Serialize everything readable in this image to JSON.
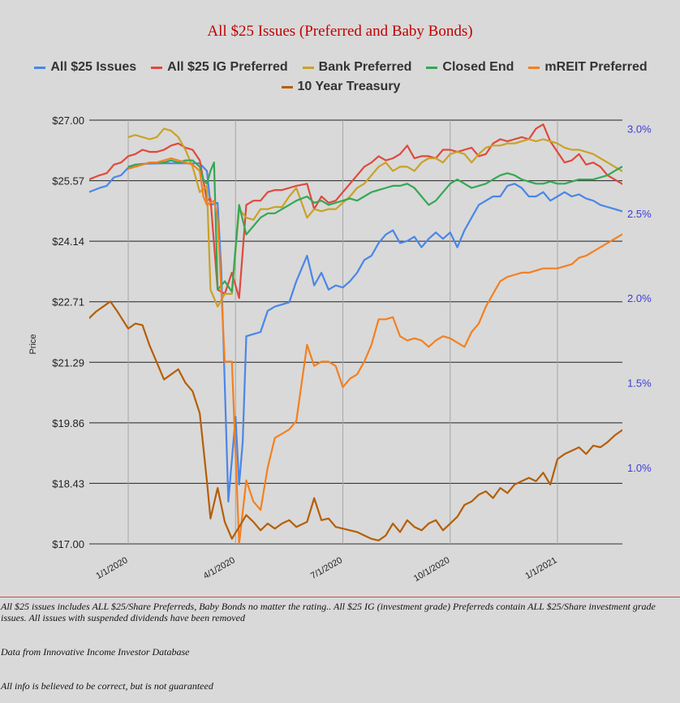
{
  "chart_data": {
    "type": "line",
    "title": "All $25 Issues (Preferred and Baby Bonds)",
    "ylabel": "Price",
    "y_left_ticks": [
      "$27.00",
      "$25.57",
      "$24.14",
      "$22.71",
      "$21.29",
      "$19.86",
      "$18.43",
      "$17.00"
    ],
    "ylim": [
      17.0,
      27.0
    ],
    "y_right_ticks": [
      "3.0%",
      "2.5%",
      "2.0%",
      "1.5%",
      "1.0%"
    ],
    "y2lim": [
      0.55,
      3.05
    ],
    "x_ticks": [
      {
        "label": "1/1/2020",
        "t": 0
      },
      {
        "label": "4/1/2020",
        "t": 3
      },
      {
        "label": "7/1/2020",
        "t": 6
      },
      {
        "label": "10/1/2020",
        "t": 9
      },
      {
        "label": "1/1/2021",
        "t": 12
      }
    ],
    "xlim": [
      -1.1,
      14.7
    ],
    "series": [
      {
        "name": "All $25 Issues",
        "color": "#4a86e8",
        "axis": "left",
        "x": [
          -1.1,
          -0.8,
          -0.6,
          -0.4,
          -0.2,
          0,
          0.2,
          0.4,
          1.0,
          1.5,
          2.0,
          2.2,
          2.3,
          2.5,
          2.6,
          2.8,
          3.0,
          3.1,
          3.2,
          3.3,
          3.5,
          3.7,
          3.9,
          4.1,
          4.3,
          4.5,
          4.7,
          5.0,
          5.2,
          5.4,
          5.6,
          5.8,
          6.0,
          6.2,
          6.4,
          6.6,
          6.8,
          7.0,
          7.2,
          7.4,
          7.6,
          7.8,
          8.0,
          8.2,
          8.4,
          8.6,
          8.8,
          9.0,
          9.2,
          9.4,
          9.6,
          9.8,
          10.0,
          10.2,
          10.4,
          10.6,
          10.8,
          11.0,
          11.2,
          11.4,
          11.6,
          11.8,
          12.0,
          12.2,
          12.4,
          12.6,
          12.8,
          13.0,
          13.2,
          13.4,
          13.6,
          13.8,
          14.0,
          14.2,
          14.4,
          14.6
        ],
        "y": [
          25.3,
          25.4,
          25.45,
          25.65,
          25.7,
          25.88,
          25.95,
          25.97,
          25.98,
          25.98,
          25.98,
          25.8,
          25.0,
          25.05,
          23.5,
          18.0,
          20.0,
          18.4,
          19.4,
          21.9,
          21.95,
          22.0,
          22.5,
          22.6,
          22.65,
          22.7,
          23.2,
          23.8,
          23.1,
          23.4,
          23.0,
          23.1,
          23.05,
          23.2,
          23.4,
          23.7,
          23.8,
          24.1,
          24.3,
          24.4,
          24.1,
          24.15,
          24.25,
          24.0,
          24.2,
          24.35,
          24.2,
          24.35,
          24.0,
          24.4,
          24.7,
          25.0,
          25.1,
          25.2,
          25.2,
          25.45,
          25.5,
          25.4,
          25.2,
          25.2,
          25.3,
          25.1,
          25.2,
          25.3,
          25.2,
          25.25,
          25.15,
          25.1,
          25.0,
          24.95,
          24.9,
          24.85,
          24.8,
          24.75,
          24.7,
          24.6
        ]
      },
      {
        "name": "All $25 IG Preferred",
        "color": "#e0493d",
        "axis": "left",
        "x": [
          -1.1,
          -0.8,
          -0.6,
          -0.4,
          -0.2,
          0,
          0.2,
          0.4,
          0.6,
          0.8,
          1.0,
          1.2,
          1.4,
          1.6,
          1.8,
          2.0,
          2.2,
          2.3,
          2.5,
          2.7,
          2.9,
          3.1,
          3.3,
          3.5,
          3.7,
          3.9,
          4.1,
          4.3,
          4.5,
          4.7,
          5.0,
          5.2,
          5.4,
          5.6,
          5.8,
          6.0,
          6.2,
          6.4,
          6.6,
          6.8,
          7.0,
          7.2,
          7.4,
          7.6,
          7.8,
          8.0,
          8.2,
          8.4,
          8.6,
          8.8,
          9.0,
          9.2,
          9.4,
          9.6,
          9.8,
          10.0,
          10.2,
          10.4,
          10.6,
          10.8,
          11.0,
          11.2,
          11.4,
          11.6,
          11.8,
          12.0,
          12.2,
          12.4,
          12.6,
          12.8,
          13.0,
          13.2,
          13.4,
          13.6,
          13.8,
          14.0,
          14.2,
          14.4,
          14.6
        ],
        "y": [
          25.6,
          25.7,
          25.75,
          25.95,
          26.0,
          26.15,
          26.2,
          26.3,
          26.25,
          26.25,
          26.3,
          26.4,
          26.45,
          26.35,
          26.3,
          26.05,
          25.1,
          25.15,
          23.0,
          22.9,
          23.4,
          22.8,
          25.0,
          25.1,
          25.1,
          25.3,
          25.35,
          25.35,
          25.4,
          25.45,
          25.5,
          24.9,
          25.2,
          25.05,
          25.1,
          25.3,
          25.5,
          25.7,
          25.9,
          26.0,
          26.15,
          26.05,
          26.1,
          26.2,
          26.4,
          26.1,
          26.15,
          26.15,
          26.1,
          26.3,
          26.3,
          26.25,
          26.3,
          26.35,
          26.15,
          26.2,
          26.45,
          26.55,
          26.5,
          26.55,
          26.6,
          26.55,
          26.8,
          26.9,
          26.5,
          26.25,
          26.0,
          26.05,
          26.2,
          25.95,
          26.0,
          25.9,
          25.7,
          25.6,
          25.5,
          25.4,
          25.3,
          25.2,
          25.1
        ]
      },
      {
        "name": "Bank Preferred",
        "color": "#c9a227",
        "axis": "left",
        "x": [
          0,
          0.2,
          0.4,
          0.6,
          0.8,
          1.0,
          1.2,
          1.4,
          1.6,
          1.8,
          2.0,
          2.2,
          2.3,
          2.5,
          2.7,
          2.9,
          3.1,
          3.3,
          3.5,
          3.7,
          3.9,
          4.1,
          4.3,
          4.5,
          4.7,
          5.0,
          5.2,
          5.4,
          5.6,
          5.8,
          6.0,
          6.2,
          6.4,
          6.6,
          6.8,
          7.0,
          7.2,
          7.4,
          7.6,
          7.8,
          8.0,
          8.2,
          8.4,
          8.6,
          8.8,
          9.0,
          9.2,
          9.4,
          9.6,
          9.8,
          10.0,
          10.2,
          10.4,
          10.6,
          10.8,
          11.0,
          11.2,
          11.4,
          11.6,
          11.8,
          12.0,
          12.2,
          12.4,
          12.6,
          12.8,
          13.0,
          13.2,
          13.4,
          13.6,
          13.8,
          14.0,
          14.2,
          14.4,
          14.6
        ],
        "y": [
          26.6,
          26.65,
          26.6,
          26.55,
          26.6,
          26.8,
          26.75,
          26.6,
          26.3,
          25.9,
          25.3,
          25.45,
          23.0,
          22.6,
          22.9,
          22.9,
          24.9,
          24.7,
          24.65,
          24.9,
          24.9,
          24.95,
          24.95,
          25.2,
          25.4,
          24.7,
          24.9,
          24.85,
          24.9,
          24.9,
          25.05,
          25.2,
          25.4,
          25.5,
          25.7,
          25.9,
          26.0,
          25.8,
          25.9,
          25.9,
          25.8,
          26.0,
          26.1,
          26.1,
          26.0,
          26.2,
          26.25,
          26.2,
          26.0,
          26.2,
          26.35,
          26.4,
          26.4,
          26.45,
          26.45,
          26.5,
          26.55,
          26.5,
          26.55,
          26.5,
          26.45,
          26.35,
          26.3,
          26.3,
          26.25,
          26.2,
          26.1,
          26.0,
          25.9,
          25.8,
          25.7,
          25.6,
          25.5,
          25.4
        ]
      },
      {
        "name": "Closed End",
        "color": "#34a853",
        "axis": "left",
        "x": [
          0,
          0.2,
          0.4,
          0.6,
          0.8,
          1.0,
          1.2,
          1.4,
          1.6,
          1.8,
          2.0,
          2.1,
          2.2,
          2.3,
          2.4,
          2.5,
          2.7,
          2.9,
          3.1,
          3.3,
          3.5,
          3.7,
          3.9,
          4.1,
          4.3,
          4.5,
          4.7,
          5.0,
          5.2,
          5.4,
          5.6,
          5.8,
          6.0,
          6.2,
          6.4,
          6.6,
          6.8,
          7.0,
          7.2,
          7.4,
          7.6,
          7.8,
          8.0,
          8.2,
          8.4,
          8.6,
          8.8,
          9.0,
          9.2,
          9.4,
          9.6,
          9.8,
          10.0,
          10.2,
          10.4,
          10.6,
          10.8,
          11.0,
          11.2,
          11.4,
          11.6,
          11.8,
          12.0,
          12.2,
          12.4,
          12.6,
          12.8,
          13.0,
          13.2,
          13.4,
          13.6,
          13.8,
          14.0,
          14.2,
          14.4,
          14.6
        ],
        "y": [
          25.9,
          25.95,
          25.95,
          26.0,
          26.0,
          26.0,
          26.05,
          26.0,
          26.05,
          26.05,
          25.9,
          25.6,
          25.5,
          25.8,
          26.0,
          23.0,
          23.2,
          22.95,
          25.0,
          24.3,
          24.5,
          24.7,
          24.8,
          24.8,
          24.9,
          25.0,
          25.1,
          25.2,
          25.05,
          25.1,
          25.0,
          25.05,
          25.1,
          25.15,
          25.1,
          25.2,
          25.3,
          25.35,
          25.4,
          25.45,
          25.45,
          25.5,
          25.4,
          25.2,
          25.0,
          25.1,
          25.3,
          25.5,
          25.6,
          25.5,
          25.4,
          25.45,
          25.5,
          25.6,
          25.7,
          25.75,
          25.7,
          25.6,
          25.55,
          25.5,
          25.5,
          25.55,
          25.5,
          25.5,
          25.55,
          25.6,
          25.6,
          25.6,
          25.65,
          25.7,
          25.8,
          25.9,
          25.8,
          25.7,
          25.6,
          25.5
        ]
      },
      {
        "name": "mREIT Preferred",
        "color": "#f4801f",
        "axis": "left",
        "x": [
          0,
          0.2,
          0.4,
          0.6,
          0.8,
          1.0,
          1.2,
          1.4,
          1.6,
          1.8,
          2.0,
          2.1,
          2.2,
          2.4,
          2.5,
          2.7,
          2.9,
          3.1,
          3.3,
          3.5,
          3.7,
          3.9,
          4.1,
          4.3,
          4.5,
          4.7,
          5.0,
          5.2,
          5.4,
          5.6,
          5.8,
          6.0,
          6.2,
          6.4,
          6.6,
          6.8,
          7.0,
          7.2,
          7.4,
          7.6,
          7.8,
          8.0,
          8.2,
          8.4,
          8.6,
          8.8,
          9.0,
          9.2,
          9.4,
          9.6,
          9.8,
          10.0,
          10.2,
          10.4,
          10.6,
          10.8,
          11.0,
          11.2,
          11.4,
          11.6,
          11.8,
          12.0,
          12.2,
          12.4,
          12.6,
          12.8,
          13.0,
          13.2,
          13.4,
          13.6,
          13.8,
          14.0,
          14.2,
          14.4,
          14.6
        ],
        "y": [
          25.85,
          25.9,
          25.95,
          26.0,
          26.0,
          26.05,
          26.1,
          26.05,
          26.0,
          25.95,
          25.8,
          25.2,
          25.0,
          25.1,
          24.7,
          21.3,
          21.3,
          17.0,
          18.5,
          18.0,
          17.8,
          18.8,
          19.5,
          19.6,
          19.7,
          19.9,
          21.7,
          21.2,
          21.3,
          21.3,
          21.2,
          20.7,
          20.9,
          21.0,
          21.3,
          21.7,
          22.3,
          22.3,
          22.35,
          21.9,
          21.8,
          21.85,
          21.8,
          21.65,
          21.8,
          21.9,
          21.85,
          21.75,
          21.65,
          22.0,
          22.2,
          22.6,
          22.9,
          23.2,
          23.3,
          23.35,
          23.4,
          23.4,
          23.45,
          23.5,
          23.5,
          23.5,
          23.55,
          23.6,
          23.75,
          23.8,
          23.9,
          24.0,
          24.1,
          24.2,
          24.3,
          24.4,
          24.45,
          24.5,
          24.55
        ]
      },
      {
        "name": "10 Year Treasury",
        "color": "#b45f06",
        "axis": "right",
        "x": [
          -1.1,
          -0.9,
          -0.7,
          -0.5,
          -0.3,
          0,
          0.2,
          0.4,
          0.6,
          0.8,
          1.0,
          1.2,
          1.4,
          1.6,
          1.8,
          2.0,
          2.2,
          2.3,
          2.5,
          2.7,
          2.9,
          3.1,
          3.3,
          3.5,
          3.7,
          3.9,
          4.1,
          4.3,
          4.5,
          4.7,
          5.0,
          5.2,
          5.4,
          5.6,
          5.8,
          6.0,
          6.2,
          6.4,
          6.6,
          6.8,
          7.0,
          7.2,
          7.4,
          7.6,
          7.8,
          8.0,
          8.2,
          8.4,
          8.6,
          8.8,
          9.0,
          9.2,
          9.4,
          9.6,
          9.8,
          10.0,
          10.2,
          10.4,
          10.6,
          10.8,
          11.0,
          11.2,
          11.4,
          11.6,
          11.8,
          12.0,
          12.2,
          12.4,
          12.6,
          12.8,
          13.0,
          13.2,
          13.4,
          13.6,
          13.8,
          14.0,
          14.2,
          14.4,
          14.6
        ],
        "y": [
          1.88,
          1.92,
          1.95,
          1.98,
          1.92,
          1.82,
          1.85,
          1.84,
          1.72,
          1.62,
          1.52,
          1.55,
          1.58,
          1.5,
          1.45,
          1.32,
          0.92,
          0.7,
          0.88,
          0.68,
          0.58,
          0.65,
          0.72,
          0.68,
          0.63,
          0.67,
          0.64,
          0.67,
          0.69,
          0.65,
          0.68,
          0.82,
          0.69,
          0.7,
          0.65,
          0.64,
          0.63,
          0.62,
          0.6,
          0.58,
          0.57,
          0.6,
          0.67,
          0.62,
          0.69,
          0.65,
          0.63,
          0.67,
          0.69,
          0.63,
          0.67,
          0.71,
          0.78,
          0.8,
          0.84,
          0.86,
          0.82,
          0.88,
          0.85,
          0.9,
          0.92,
          0.94,
          0.92,
          0.97,
          0.9,
          1.05,
          1.08,
          1.1,
          1.12,
          1.08,
          1.13,
          1.12,
          1.15,
          1.19,
          1.22,
          1.24,
          1.32,
          1.42,
          1.48
        ]
      }
    ],
    "grid": true,
    "legend": "top"
  },
  "notes": [
    "All $25 issues includes ALL $25/Share Preferreds, Baby Bonds no matter the rating..  All $25 IG (investment grade) Preferreds contain ALL $25/Share investment grade issues.  All issues with suspended dividends have been removed",
    "Data from Innovative Income Investor Database",
    "All info is believed to be correct, but is not guaranteed"
  ]
}
